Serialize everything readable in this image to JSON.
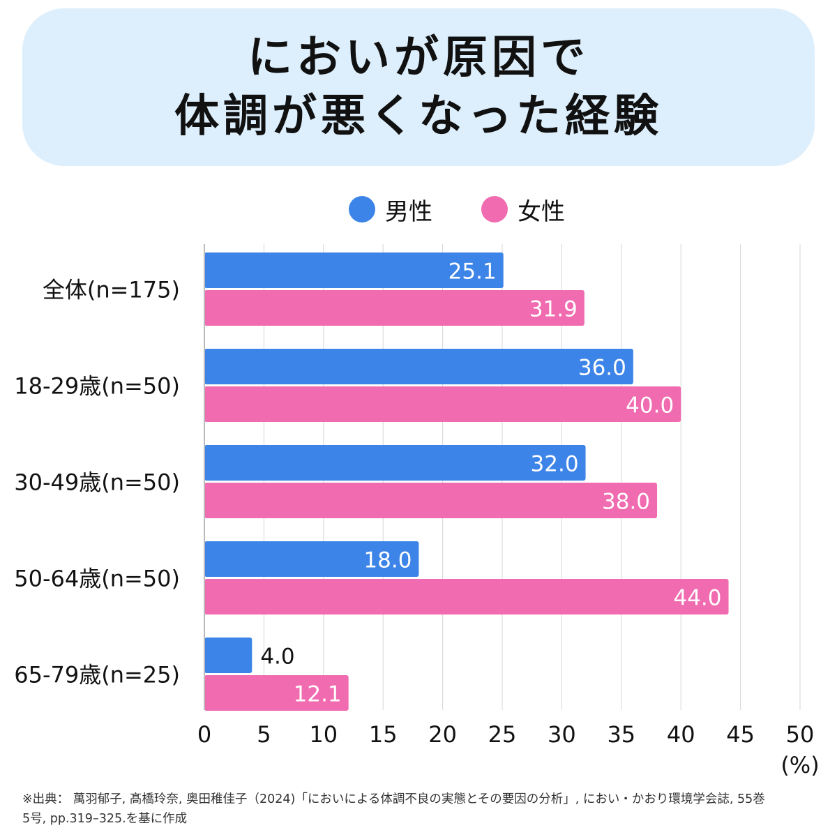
{
  "title": {
    "line1": "においが原因で",
    "line2": "体調が悪くなった経験"
  },
  "footnote": {
    "line1": "※出典： 萬羽郁子, 髙橋玲奈, 奥田稚佳子（2024)「においによる体調不良の実態とその要因の分析」, におい・かおり環境学会誌, 55巻",
    "line2": "5号, pp.319–325.を基に作成"
  },
  "chart_data": {
    "type": "bar",
    "orientation": "horizontal",
    "categories": [
      "全体(n=175)",
      "18-29歳(n=50)",
      "30-49歳(n=50)",
      "50-64歳(n=50)",
      "65-79歳(n=25)"
    ],
    "series": [
      {
        "name": "男性",
        "color": "#3d84e8",
        "values": [
          25.1,
          36.0,
          32.0,
          18.0,
          4.0
        ],
        "labels": [
          "25.1",
          "36.0",
          "32.0",
          "18.0",
          "4.0"
        ]
      },
      {
        "name": "女性",
        "color": "#f06bb0",
        "values": [
          31.9,
          40.0,
          38.0,
          44.0,
          12.1
        ],
        "labels": [
          "31.9",
          "40.0",
          "38.0",
          "44.0",
          "12.1"
        ]
      }
    ],
    "xlim": [
      0,
      50
    ],
    "xticks": [
      "0",
      "5",
      "10",
      "15",
      "20",
      "25",
      "30",
      "35",
      "40",
      "45",
      "50"
    ],
    "xunit": "(%)",
    "grid": "vertical",
    "legend": "top-center"
  }
}
